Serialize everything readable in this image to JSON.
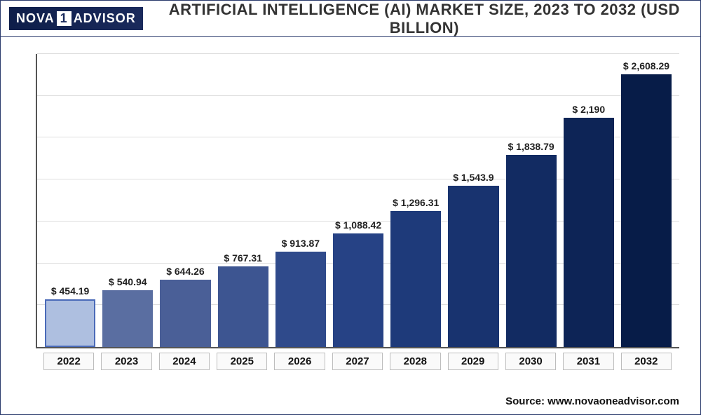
{
  "logo": {
    "left": "NOVA",
    "one": "1",
    "right": "ADVISOR"
  },
  "title": "ARTIFICIAL INTELLIGENCE (AI) MARKET SIZE, 2023 TO 2032  (USD BILLION)",
  "chart": {
    "type": "bar",
    "ymax": 2800,
    "grid_steps": 7,
    "grid_color": "#dddddd",
    "axis_color": "#555555",
    "background_color": "#ffffff",
    "label_fontsize": 14,
    "xaxis_fontsize": 15,
    "bar_width_ratio": 1.0,
    "categories": [
      "2022",
      "2023",
      "2024",
      "2025",
      "2026",
      "2027",
      "2028",
      "2029",
      "2030",
      "2031",
      "2032"
    ],
    "values": [
      454.19,
      540.94,
      644.26,
      767.31,
      913.87,
      1088.42,
      1296.31,
      1543.9,
      1838.79,
      2190,
      2608.29
    ],
    "value_labels": [
      "$ 454.19",
      "$ 540.94",
      "$ 644.26",
      "$ 767.31",
      "$ 913.87",
      "$ 1,088.42",
      "$ 1,296.31",
      "$ 1,543.9",
      "$ 1,838.79",
      "$ 2,190",
      "$ 2,608.29"
    ],
    "bar_colors": [
      "#aebfe0",
      "#5a6ea1",
      "#4a5f97",
      "#3d5591",
      "#2f4a8b",
      "#264285",
      "#1e3a7a",
      "#18336f",
      "#122b62",
      "#0d2456",
      "#071c48"
    ],
    "highlight_index": 0,
    "highlight_border_color": "#4a6ab8"
  },
  "source_prefix": "Source:",
  "source_url": "www.novaoneadvisor.com"
}
